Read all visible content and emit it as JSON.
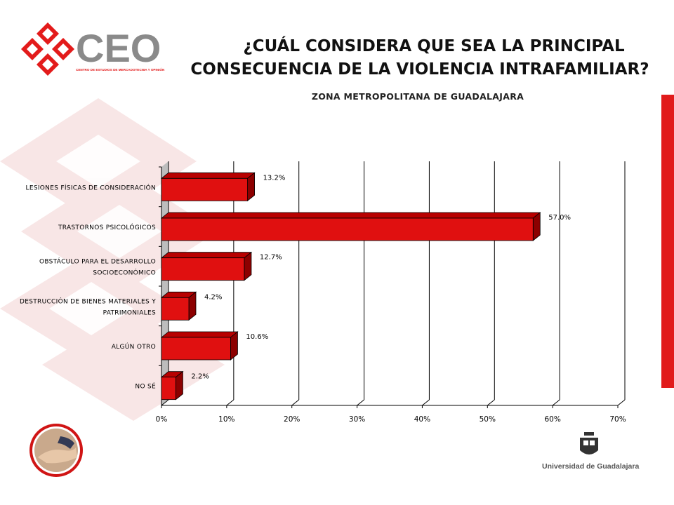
{
  "header": {
    "title_line1": "¿CUÁL CONSIDERA QUE SEA LA PRINCIPAL",
    "title_line2": "CONSECUENCIA DE LA VIOLENCIA INTRAFAMILIAR?",
    "subtitle": "ZONA METROPOLITANA DE GUADALAJARA"
  },
  "logo": {
    "text": "CEO",
    "tagline": "CENTRO DE ESTUDIOS DE MERCADOTECNIA Y OPINIÓN"
  },
  "university": {
    "label": "Universidad de Guadalajara"
  },
  "colors": {
    "accent": "#e11b1b",
    "bar_front": "#e01010",
    "bar_top": "#b80000",
    "bar_side": "#8c0000"
  },
  "chart_data": {
    "type": "bar",
    "orientation": "horizontal",
    "categories": [
      [
        "LESIONES FÍSICAS DE CONSIDERACIÓN"
      ],
      [
        "TRASTORNOS PSICOLÓGICOS"
      ],
      [
        "OBSTÁCULO PARA EL DESARROLLO",
        "SOCIOECONÓMICO"
      ],
      [
        "DESTRUCCIÓN DE BIENES MATERIALES Y",
        "PATRIMONIALES"
      ],
      [
        "ALGÚN OTRO"
      ],
      [
        "NO SÉ"
      ]
    ],
    "values": [
      13.2,
      57.0,
      12.7,
      4.2,
      10.6,
      2.2
    ],
    "value_labels": [
      "13.2%",
      "57.0%",
      "12.7%",
      "4.2%",
      "10.6%",
      "2.2%"
    ],
    "xlim": [
      0,
      70
    ],
    "x_ticks": [
      0,
      10,
      20,
      30,
      40,
      50,
      60,
      70
    ],
    "x_tick_labels": [
      "0%",
      "10%",
      "20%",
      "30%",
      "40%",
      "50%",
      "60%",
      "70%"
    ],
    "grid": true,
    "legend": "none"
  }
}
